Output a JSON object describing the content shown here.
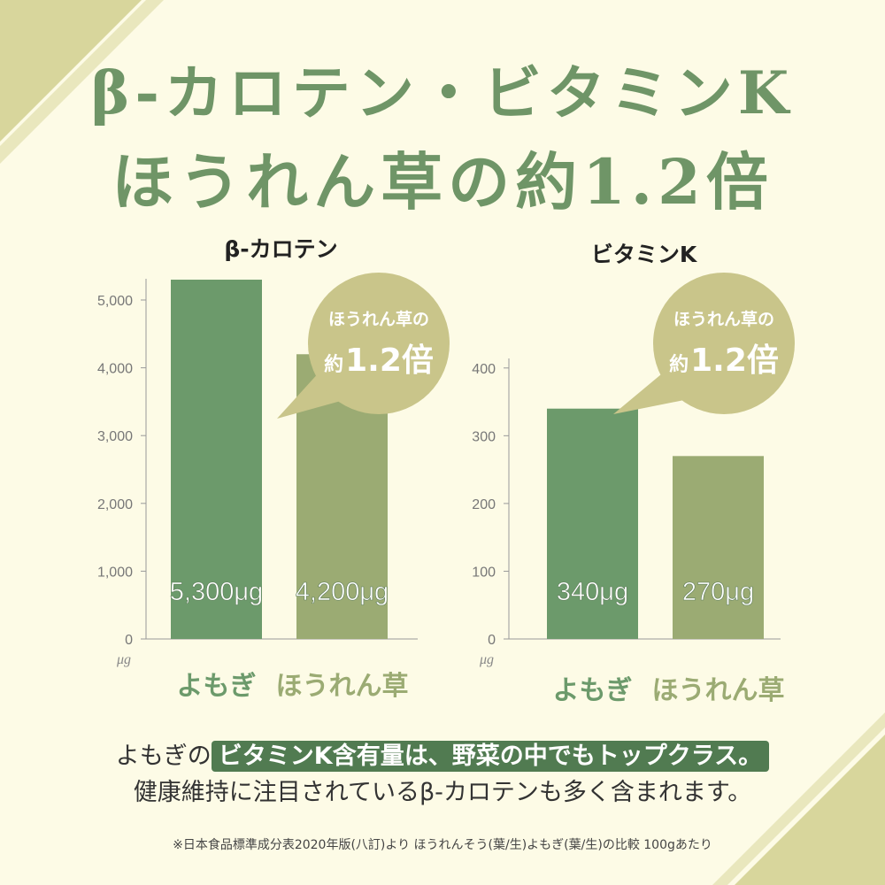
{
  "headline": {
    "line1": "β-カロテン・ビタミンK",
    "line2": "ほうれん草の約1.2倍"
  },
  "colors": {
    "background": "#fdfbe6",
    "yomogi_bar": "#6c9a6b",
    "spinach_bar": "#9bab73",
    "bubble": "#c9c58a",
    "headline": "#6f9567",
    "highlight": "#517b51",
    "stripe": "#d8d69c"
  },
  "chart_data": [
    {
      "type": "bar",
      "title": "β-カロテン",
      "unit": "μg",
      "categories": [
        "よもぎ",
        "ほうれん草"
      ],
      "values": [
        5300,
        4200
      ],
      "value_labels": [
        "5,300μg",
        "4,200μg"
      ],
      "ylim": [
        0,
        5300
      ],
      "yticks": [
        0,
        1000,
        2000,
        3000,
        4000,
        5000
      ],
      "ytick_labels": [
        "0",
        "1,000",
        "2,000",
        "3,000",
        "4,000",
        "5,000"
      ],
      "callout": {
        "line1": "ほうれん草の",
        "prefix": "約",
        "value": "1.2倍"
      }
    },
    {
      "type": "bar",
      "title": "ビタミンK",
      "unit": "μg",
      "categories": [
        "よもぎ",
        "ほうれん草"
      ],
      "values": [
        340,
        270
      ],
      "value_labels": [
        "340μg",
        "270μg"
      ],
      "ylim": [
        0,
        435
      ],
      "yticks": [
        0,
        100,
        200,
        300,
        400
      ],
      "ytick_labels": [
        "0",
        "100",
        "200",
        "300",
        "400"
      ],
      "callout": {
        "line1": "ほうれん草の",
        "prefix": "約",
        "value": "1.2倍"
      }
    }
  ],
  "note": {
    "line1_prefix": "よもぎの",
    "line1_highlight": "ビタミンK含有量は、野菜の中でもトップクラス。",
    "line2": "健康維持に注目されているβ-カロテンも多く含まれます。"
  },
  "footnote": "※日本食品標準成分表2020年版(八訂)より ほうれんそう(葉/生)よもぎ(葉/生)の比較 100gあたり"
}
